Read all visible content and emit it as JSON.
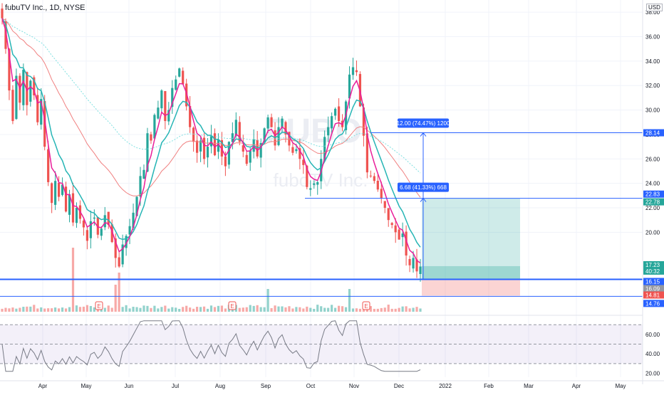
{
  "header": {
    "title": "fubuTV Inc., 1D, NYSE",
    "currency": "USD",
    "watermark_ticker": "FUBO",
    "watermark_name": "fuboTV Inc."
  },
  "colors": {
    "up": "#26a69a",
    "down": "#ef5350",
    "ema_fast": "#e91e9a",
    "ema_slow": "#26b5b5",
    "ma_long": "#f08080",
    "ma_200": "#7fe0e0",
    "blue": "#2962ff",
    "rsi_line": "#787b86",
    "rsi_band": "#7e57c2"
  },
  "chart_data": [
    {
      "type": "candlestick",
      "title": "",
      "y_axis_ticks": [
        "20.00",
        "22.00",
        "24.00",
        "26.00",
        "28.00",
        "30.00",
        "32.00",
        "34.00",
        "36.00",
        "38.00"
      ],
      "ylim": [
        13.5,
        39
      ],
      "x_axis_ticks": [
        "Apr",
        "May",
        "Jun",
        "Jul",
        "Aug",
        "Sep",
        "Oct",
        "Nov",
        "Dec",
        "2022",
        "Feb",
        "Mar",
        "Apr",
        "May"
      ],
      "closes": [
        37.5,
        35.0,
        31.6,
        29.1,
        32.8,
        30.6,
        33.3,
        30.4,
        32.4,
        31.2,
        29.0,
        30.9,
        27.0,
        24.1,
        22.4,
        24.2,
        22.9,
        23.9,
        21.7,
        23.1,
        20.8,
        22.0,
        21.1,
        20.4,
        19.3,
        20.9,
        21.2,
        19.8,
        20.3,
        21.4,
        20.6,
        19.2,
        17.9,
        17.2,
        19.0,
        19.7,
        20.5,
        21.6,
        22.9,
        24.6,
        25.1,
        28.1,
        27.5,
        29.6,
        30.2,
        31.6,
        29.1,
        30.0,
        31.8,
        32.5,
        33.4,
        32.1,
        30.3,
        28.6,
        27.4,
        26.5,
        27.5,
        26.0,
        27.0,
        27.9,
        26.3,
        27.6,
        26.2,
        25.4,
        27.4,
        28.1,
        29.2,
        27.4,
        26.6,
        25.6,
        26.7,
        27.6,
        26.2,
        27.3,
        28.5,
        29.4,
        28.6,
        27.1,
        28.6,
        29.3,
        28.0,
        27.1,
        26.5,
        26.8,
        26.0,
        25.5,
        23.7,
        23.6,
        24.0,
        24.1,
        26.0,
        27.8,
        28.6,
        29.5,
        30.1,
        29.1,
        28.6,
        30.7,
        32.9,
        33.5,
        33.1,
        30.3,
        27.9,
        24.9,
        24.6,
        24.2,
        23.5,
        22.8,
        22.0,
        21.0,
        20.6,
        20.0,
        19.4,
        19.9,
        18.1,
        17.3,
        17.9,
        16.8,
        17.2
      ],
      "marked_levels": [
        "28.14",
        "22.83",
        "22.78",
        "17.23",
        "40:32",
        "16.15",
        "16.09",
        "14.81",
        "14.76"
      ],
      "measure_labels": [
        "12.00 (74.47%) 1200",
        "6.68 (41.33%) 668"
      ],
      "earnings_markers": [
        "E",
        "E",
        "E"
      ]
    },
    {
      "type": "line",
      "title": "",
      "y_axis_ticks": [
        "20.00",
        "40.00",
        "60.00"
      ],
      "ylim": [
        16,
        76
      ],
      "band": [
        30,
        70
      ]
    }
  ]
}
